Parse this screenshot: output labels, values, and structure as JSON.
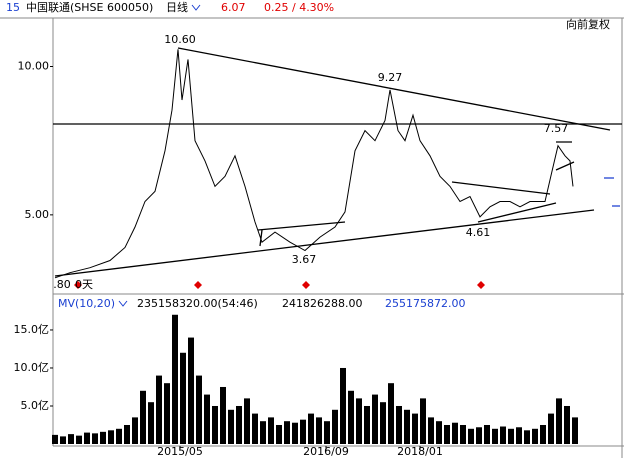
{
  "header": {
    "code": "15",
    "name": "中国联通(SHSE 600050)",
    "period": "日线",
    "price": "6.07",
    "change": "0.25 / 4.30%",
    "adjust": "向前复权"
  },
  "volume_header": {
    "indicator": "MV(10,20)",
    "value1": "235158320.00(54:46)",
    "value2": "241826288.00",
    "value3": "255175872.00"
  },
  "chart_data": [
    {
      "type": "line",
      "color": "#000000",
      "annotations": [
        "10.60",
        "9.27",
        "7.57",
        "4.61",
        "3.67",
        ".80",
        "0天"
      ],
      "x": [
        2,
        17,
        37,
        57,
        72,
        82,
        92,
        102,
        112,
        119,
        125,
        129,
        135,
        142,
        152,
        162,
        172,
        182,
        192,
        202,
        209,
        222,
        237,
        252,
        267,
        282,
        292,
        302,
        312,
        322,
        332,
        337,
        345,
        352,
        360,
        367,
        377,
        387,
        397,
        407,
        417,
        427,
        437,
        447,
        457,
        467,
        477,
        492,
        499,
        505,
        512,
        517,
        520
      ],
      "values": [
        2.88,
        3.05,
        3.22,
        3.46,
        3.9,
        4.59,
        5.45,
        5.79,
        7.16,
        8.53,
        10.58,
        8.87,
        10.24,
        7.5,
        6.82,
        5.96,
        6.3,
        6.99,
        5.96,
        4.76,
        4.08,
        4.42,
        4.08,
        3.8,
        4.25,
        4.59,
        5.1,
        7.16,
        7.84,
        7.5,
        8.18,
        9.21,
        7.84,
        7.5,
        8.36,
        7.5,
        6.99,
        6.3,
        5.96,
        5.45,
        5.62,
        4.93,
        5.27,
        5.45,
        5.45,
        5.27,
        5.45,
        5.45,
        6.47,
        7.33,
        6.99,
        6.82,
        5.96
      ],
      "xlim": [
        0,
        570
      ],
      "ylim": [
        2.4,
        11.5
      ],
      "yticks": [
        {
          "value": 10,
          "label": "10.00"
        },
        {
          "value": 5,
          "label": "5.00"
        }
      ]
    },
    {
      "type": "bar",
      "color": "#000000",
      "x": [
        2,
        10,
        18,
        26,
        34,
        42,
        50,
        58,
        66,
        74,
        82,
        90,
        98,
        106,
        114,
        122,
        130,
        138,
        146,
        154,
        162,
        170,
        178,
        186,
        194,
        202,
        210,
        218,
        226,
        234,
        242,
        250,
        258,
        266,
        274,
        282,
        290,
        298,
        306,
        314,
        322,
        330,
        338,
        346,
        354,
        362,
        370,
        378,
        386,
        394,
        402,
        410,
        418,
        426,
        434,
        442,
        450,
        458,
        466,
        474,
        482,
        490,
        498,
        506,
        514,
        522
      ],
      "values": [
        1.2,
        1.0,
        1.3,
        1.1,
        1.5,
        1.4,
        1.6,
        1.8,
        2.0,
        2.5,
        3.5,
        7.0,
        5.5,
        9.0,
        8.0,
        17.0,
        12.0,
        14.0,
        9.0,
        6.5,
        5.0,
        7.5,
        4.5,
        5.0,
        6.0,
        4.0,
        3.0,
        3.5,
        2.5,
        3.0,
        2.8,
        3.2,
        4.0,
        3.5,
        3.0,
        4.5,
        10.0,
        7.0,
        6.0,
        5.0,
        6.5,
        5.5,
        8.0,
        5.0,
        4.5,
        4.0,
        6.0,
        3.5,
        3.0,
        2.5,
        2.8,
        2.5,
        2.0,
        2.2,
        2.5,
        2.0,
        2.3,
        2.0,
        2.2,
        1.8,
        2.0,
        2.5,
        4.0,
        6.0,
        5.0,
        3.5
      ],
      "xlim": [
        0,
        570
      ],
      "ylim": [
        0,
        17.1
      ],
      "yticks": [
        {
          "value": 15,
          "label": "15.0亿"
        },
        {
          "value": 10,
          "label": "10.0亿"
        },
        {
          "value": 5,
          "label": "5.0亿"
        }
      ],
      "xticks": [
        {
          "value": 127,
          "label": "2015/05"
        },
        {
          "value": 273,
          "label": "2016/09"
        },
        {
          "value": 367,
          "label": "2018/01"
        }
      ]
    }
  ]
}
